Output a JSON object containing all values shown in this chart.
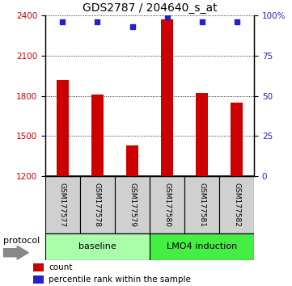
{
  "title": "GDS2787 / 204640_s_at",
  "categories": [
    "GSM177577",
    "GSM177578",
    "GSM177579",
    "GSM177580",
    "GSM177581",
    "GSM177582"
  ],
  "bar_values": [
    1920,
    1810,
    1430,
    2370,
    1820,
    1750
  ],
  "scatter_values": [
    96,
    96,
    93,
    99,
    96,
    96
  ],
  "ylim_left": [
    1200,
    2400
  ],
  "ylim_right": [
    0,
    100
  ],
  "yticks_left": [
    1200,
    1500,
    1800,
    2100,
    2400
  ],
  "yticks_right": [
    0,
    25,
    50,
    75,
    100
  ],
  "bar_color": "#cc0000",
  "scatter_color": "#2222cc",
  "group1_label": "baseline",
  "group1_color": "#aaffaa",
  "group2_label": "LMO4 induction",
  "group2_color": "#44ee44",
  "protocol_label": "protocol",
  "legend_bar_label": "count",
  "legend_scatter_label": "percentile rank within the sample",
  "title_fontsize": 10,
  "tick_fontsize": 7.5,
  "label_fontsize": 8,
  "cat_label_fontsize": 6.5,
  "proto_fontsize": 8
}
